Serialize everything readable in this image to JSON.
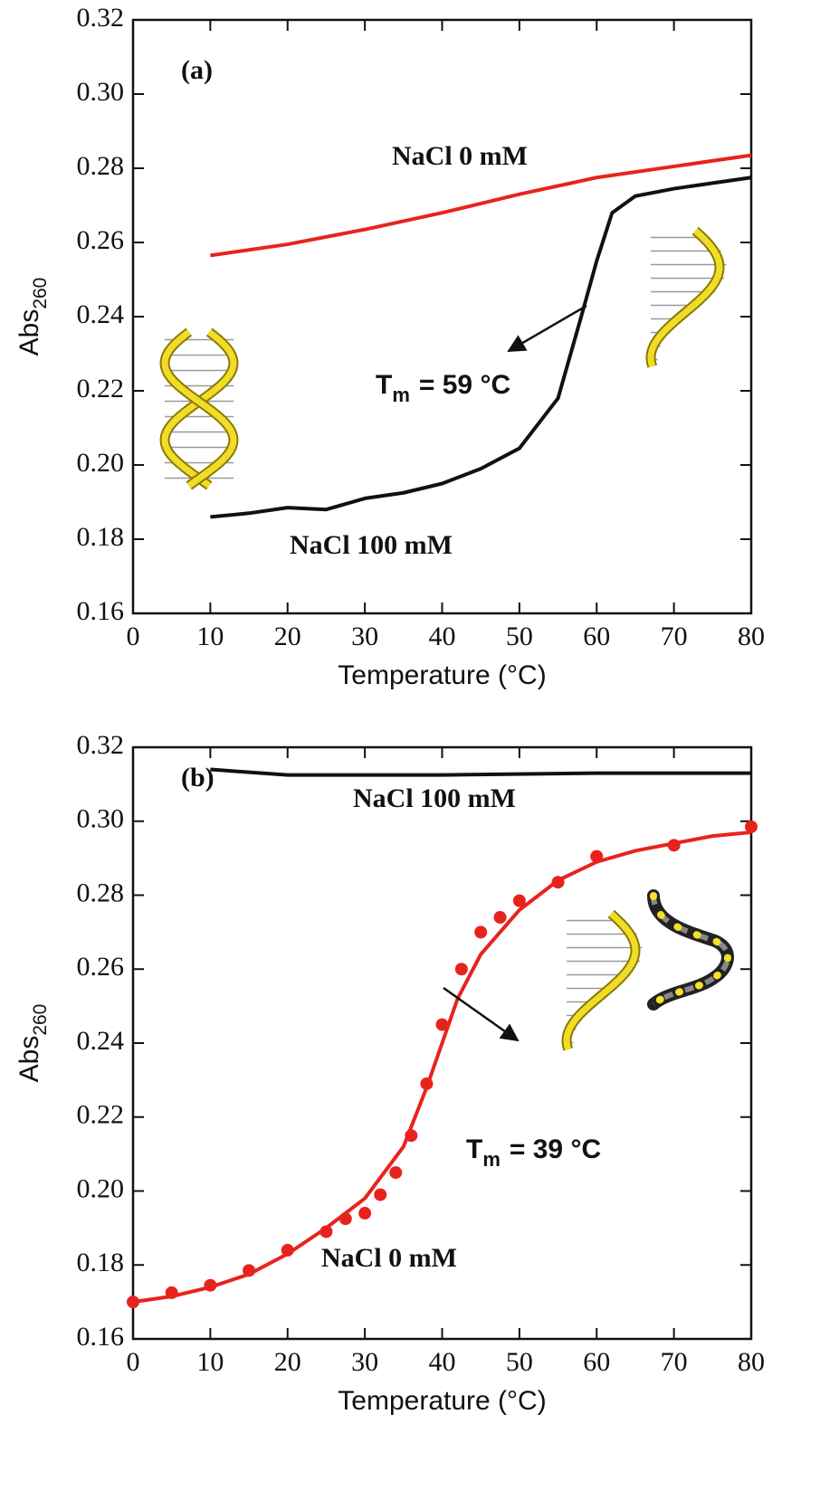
{
  "chart_data": [
    {
      "type": "line",
      "panel_label": "(a)",
      "x_label": "Temperature (°C)",
      "y_label": {
        "text": "Abs",
        "subscript": "260"
      },
      "annotation": {
        "symbol": "T",
        "subscript": "m",
        "text": "= 59 °C"
      },
      "xlim": [
        0,
        80
      ],
      "xticks": [
        0,
        10,
        20,
        30,
        40,
        50,
        60,
        70,
        80
      ],
      "ylim": [
        0.16,
        0.32
      ],
      "yticks": [
        0.16,
        0.18,
        {
          "value": 0.2,
          "label": "0.20"
        },
        0.22,
        0.24,
        0.26,
        0.28,
        {
          "value": 0.3,
          "label": "0.30"
        },
        0.32
      ],
      "series": [
        {
          "name": "NaCl 0 mM",
          "color": "#e8231d",
          "x": [
            10,
            20,
            30,
            40,
            50,
            60,
            70,
            80
          ],
          "values": [
            0.2565,
            0.2595,
            0.2635,
            0.268,
            0.273,
            0.2775,
            0.2805,
            0.2835
          ]
        },
        {
          "name": "NaCl 100 mM",
          "color": "#111111",
          "x": [
            10,
            15,
            20,
            25,
            30,
            35,
            40,
            45,
            50,
            55,
            58,
            60,
            62,
            65,
            70,
            75,
            80
          ],
          "values": [
            0.186,
            0.187,
            0.1885,
            0.188,
            0.191,
            0.1925,
            0.195,
            0.199,
            0.2045,
            0.218,
            0.24,
            0.255,
            0.268,
            0.2725,
            0.2745,
            0.276,
            0.2775
          ]
        }
      ]
    },
    {
      "type": "line",
      "panel_label": "(b)",
      "x_label": "Temperature (°C)",
      "y_label": {
        "text": "Abs",
        "subscript": "260"
      },
      "annotation": {
        "symbol": "T",
        "subscript": "m",
        "text": "= 39 °C"
      },
      "xlim": [
        0,
        80
      ],
      "xticks": [
        0,
        10,
        20,
        30,
        40,
        50,
        60,
        70,
        80
      ],
      "ylim": [
        0.16,
        0.32
      ],
      "yticks": [
        0.16,
        0.18,
        {
          "value": 0.2,
          "label": "0.20"
        },
        0.22,
        0.24,
        0.26,
        0.28,
        {
          "value": 0.3,
          "label": "0.30"
        },
        0.32
      ],
      "series": [
        {
          "name": "NaCl 100 mM",
          "color": "#111111",
          "x": [
            10,
            20,
            40,
            60,
            80
          ],
          "values": [
            0.314,
            0.3125,
            0.3125,
            0.313,
            0.313
          ]
        },
        {
          "name": "NaCl 0 mM",
          "color": "#e8231d",
          "x": [
            0,
            5,
            10,
            15,
            20,
            25,
            27.5,
            30,
            32,
            34,
            36,
            38,
            40,
            42.5,
            45,
            47.5,
            50,
            55,
            60,
            70,
            80
          ],
          "values": [
            0.17,
            0.1725,
            0.1745,
            0.1785,
            0.184,
            0.189,
            0.1925,
            0.194,
            0.199,
            0.205,
            0.215,
            0.229,
            0.245,
            0.26,
            0.27,
            0.274,
            0.2785,
            0.2835,
            0.2905,
            0.2935,
            0.2985
          ],
          "fit_x": [
            0,
            5,
            10,
            15,
            20,
            25,
            30,
            35,
            38,
            40,
            42,
            45,
            50,
            55,
            60,
            65,
            70,
            75,
            80
          ],
          "fit_values": [
            0.17,
            0.1715,
            0.174,
            0.1775,
            0.183,
            0.19,
            0.198,
            0.212,
            0.228,
            0.24,
            0.252,
            0.264,
            0.276,
            0.284,
            0.289,
            0.292,
            0.294,
            0.296,
            0.297
          ]
        }
      ]
    }
  ]
}
